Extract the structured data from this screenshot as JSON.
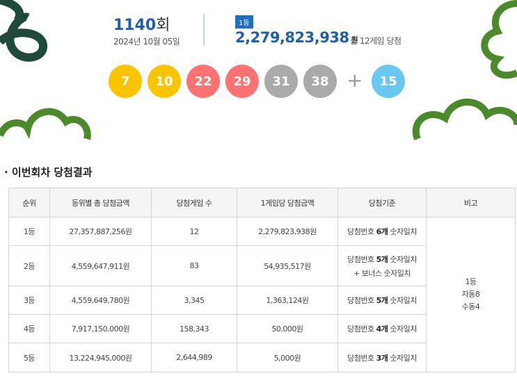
{
  "header": {
    "round_number": "1140",
    "round_suffix": "회",
    "date": "2024년 10월 05일",
    "prize_badge": "1등",
    "first_prize_amount": "2,279,823,938",
    "amount_unit": "원",
    "winner_note": "총 12게임 당첨"
  },
  "balls": {
    "numbers": [
      {
        "number": 7,
        "color": "#fbc400"
      },
      {
        "number": 10,
        "color": "#fbc400"
      },
      {
        "number": 22,
        "color": "#ff7272"
      },
      {
        "number": 29,
        "color": "#ff7272"
      },
      {
        "number": 31,
        "color": "#aaaaaa"
      },
      {
        "number": 38,
        "color": "#aaaaaa"
      }
    ],
    "plus": "+",
    "bonus": {
      "number": 15,
      "color": "#69c8f2"
    }
  },
  "section_title": "이번회차 당첨결과",
  "table": {
    "columns": [
      "순위",
      "등위별 총 당첨금액",
      "당첨게임 수",
      "1게임당 당첨금액",
      "당첨기준",
      "비고"
    ],
    "rows": [
      {
        "rank": "1등",
        "total": "27,357,887,256원",
        "games": "12",
        "per_game": "2,279,823,938원",
        "criterion": {
          "prefix": "당첨번호 ",
          "bold": "6개",
          "suffix": " 숫자일치"
        }
      },
      {
        "rank": "2등",
        "total": "4,559,647,911원",
        "games": "83",
        "per_game": "54,935,517원",
        "criterion": {
          "prefix": "당첨번호 ",
          "bold": "5개",
          "suffix": " 숫자일치",
          "extra": "+ 보너스 숫자일치"
        }
      },
      {
        "rank": "3등",
        "total": "4,559,649,780원",
        "games": "3,345",
        "per_game": "1,363,124원",
        "criterion": {
          "prefix": "당첨번호 ",
          "bold": "5개",
          "suffix": " 숫자일치"
        }
      },
      {
        "rank": "4등",
        "total": "7,917,150,000원",
        "games": "158,343",
        "per_game": "50,000원",
        "criterion": {
          "prefix": "당첨번호 ",
          "bold": "4개",
          "suffix": " 숫자일치"
        }
      },
      {
        "rank": "5등",
        "total": "13,224,945,000원",
        "games": "2,644,989",
        "per_game": "5,000원",
        "criterion": {
          "prefix": "당첨번호 ",
          "bold": "3개",
          "suffix": " 숫자일치"
        }
      }
    ],
    "note": [
      "1등",
      "자동8",
      "수동4"
    ]
  }
}
